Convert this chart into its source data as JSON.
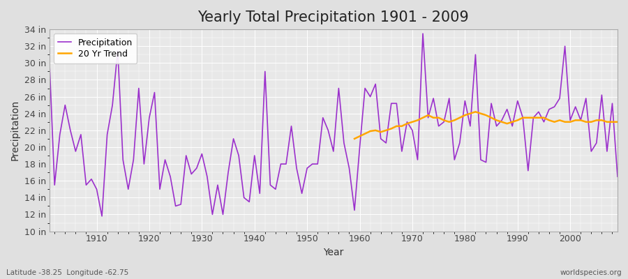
{
  "title": "Yearly Total Precipitation 1901 - 2009",
  "xlabel": "Year",
  "ylabel": "Precipitation",
  "ylim": [
    10,
    34
  ],
  "yticks": [
    10,
    12,
    14,
    16,
    18,
    20,
    22,
    24,
    26,
    28,
    30,
    32,
    34
  ],
  "years": [
    1901,
    1902,
    1903,
    1904,
    1905,
    1906,
    1907,
    1908,
    1909,
    1910,
    1911,
    1912,
    1913,
    1914,
    1915,
    1916,
    1917,
    1918,
    1919,
    1920,
    1921,
    1922,
    1923,
    1924,
    1925,
    1926,
    1927,
    1928,
    1929,
    1930,
    1931,
    1932,
    1933,
    1934,
    1935,
    1936,
    1937,
    1938,
    1939,
    1940,
    1941,
    1942,
    1943,
    1944,
    1945,
    1946,
    1947,
    1948,
    1949,
    1950,
    1951,
    1952,
    1953,
    1954,
    1955,
    1956,
    1957,
    1958,
    1959,
    1960,
    1961,
    1962,
    1963,
    1964,
    1965,
    1966,
    1967,
    1968,
    1969,
    1970,
    1971,
    1972,
    1973,
    1974,
    1975,
    1976,
    1977,
    1978,
    1979,
    1980,
    1981,
    1982,
    1983,
    1984,
    1985,
    1986,
    1987,
    1988,
    1989,
    1990,
    1991,
    1992,
    1993,
    1994,
    1995,
    1996,
    1997,
    1998,
    1999,
    2000,
    2001,
    2002,
    2003,
    2004,
    2005,
    2006,
    2007,
    2008,
    2009
  ],
  "precip": [
    30.5,
    15.5,
    21.5,
    25.0,
    22.0,
    19.5,
    21.5,
    15.5,
    16.2,
    15.0,
    11.8,
    21.5,
    25.0,
    31.5,
    18.5,
    15.0,
    18.5,
    27.0,
    18.0,
    23.5,
    26.5,
    15.0,
    18.5,
    16.5,
    13.0,
    13.2,
    19.0,
    16.8,
    17.5,
    19.2,
    16.5,
    12.0,
    15.5,
    12.0,
    17.0,
    21.0,
    19.0,
    14.0,
    13.5,
    19.0,
    14.5,
    29.0,
    15.5,
    15.0,
    18.0,
    18.0,
    22.5,
    17.5,
    14.5,
    17.5,
    18.0,
    18.0,
    23.5,
    22.0,
    19.5,
    27.0,
    20.5,
    17.5,
    12.5,
    20.0,
    27.0,
    26.0,
    27.5,
    21.0,
    20.5,
    25.2,
    25.2,
    19.5,
    23.0,
    22.0,
    18.5,
    33.5,
    23.5,
    25.8,
    22.5,
    23.0,
    25.8,
    18.5,
    20.5,
    25.5,
    22.5,
    31.0,
    18.5,
    18.2,
    25.2,
    22.5,
    23.2,
    24.5,
    22.5,
    25.5,
    23.5,
    17.2,
    23.5,
    24.2,
    23.0,
    24.5,
    24.8,
    25.8,
    32.0,
    23.2,
    24.8,
    23.2,
    25.8,
    19.5,
    20.5,
    26.2,
    19.5,
    25.2,
    16.5
  ],
  "trend_years": [
    1959,
    1960,
    1961,
    1962,
    1963,
    1964,
    1965,
    1966,
    1967,
    1968,
    1969,
    1970,
    1971,
    1972,
    1973,
    1974,
    1975,
    1976,
    1977,
    1978,
    1979,
    1980,
    1981,
    1982,
    1983,
    1984,
    1985,
    1986,
    1987,
    1988,
    1989,
    1990,
    1991,
    1992,
    1993,
    1994,
    1995,
    1996,
    1997,
    1998,
    1999,
    2000,
    2001,
    2002,
    2003,
    2004,
    2005,
    2006,
    2007,
    2008,
    2009
  ],
  "trend_vals": [
    21.0,
    21.3,
    21.6,
    21.9,
    22.0,
    21.8,
    22.0,
    22.2,
    22.5,
    22.5,
    22.8,
    23.0,
    23.2,
    23.5,
    23.8,
    23.5,
    23.5,
    23.2,
    23.0,
    23.2,
    23.5,
    23.8,
    24.0,
    24.2,
    24.0,
    23.8,
    23.5,
    23.2,
    23.0,
    22.8,
    23.0,
    23.2,
    23.5,
    23.5,
    23.5,
    23.5,
    23.5,
    23.2,
    23.0,
    23.2,
    23.0,
    23.0,
    23.2,
    23.2,
    23.0,
    23.0,
    23.2,
    23.2,
    23.0,
    23.0,
    23.0
  ],
  "precip_color": "#9B30CC",
  "trend_color": "#FFA500",
  "bg_color": "#E0E0E0",
  "plot_bg_color": "#E8E8E8",
  "grid_color": "#FFFFFF",
  "title_fontsize": 15,
  "axis_label_fontsize": 10,
  "tick_fontsize": 9,
  "legend_fontsize": 9,
  "footer_left": "Latitude -38.25  Longitude -62.75",
  "footer_right": "worldspecies.org"
}
